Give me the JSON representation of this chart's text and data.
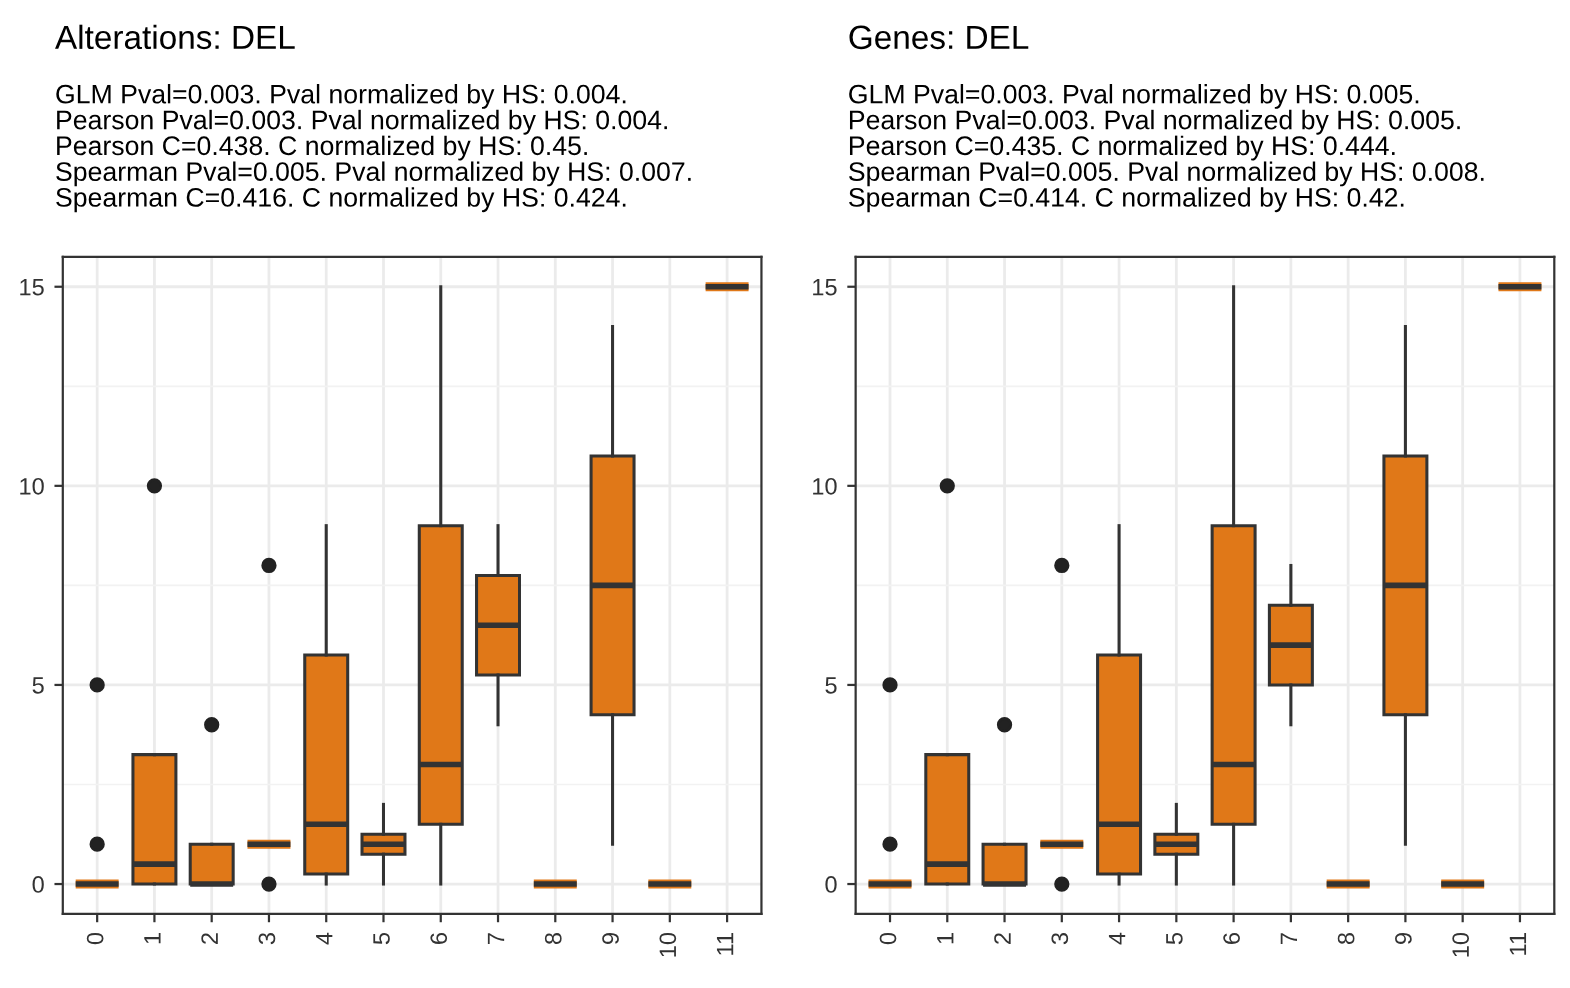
{
  "chart_data": [
    {
      "type": "box",
      "title": "Alterations: DEL",
      "subtitle": "GLM Pval=0.003. Pval normalized by HS: 0.004.\nPearson Pval=0.003. Pval normalized by HS: 0.004.\nPearson C=0.438. C normalized by HS: 0.45.\nSpearman Pval=0.005. Pval normalized by HS: 0.007.\nSpearman C=0.416. C normalized by HS: 0.424.",
      "categories": [
        "0",
        "1",
        "2",
        "3",
        "4",
        "5",
        "6",
        "7",
        "8",
        "9",
        "10",
        "11"
      ],
      "color": "#e07818",
      "ylim": [
        -0.75,
        15.75
      ],
      "yticks": [
        0,
        5,
        10,
        15
      ],
      "grid": true,
      "boxes": [
        {
          "low": 0,
          "q1": 0,
          "median": 0,
          "q3": 0,
          "high": 0,
          "outliers": [
            1,
            5
          ]
        },
        {
          "low": 0,
          "q1": 0,
          "median": 0.5,
          "q3": 3.25,
          "high": 3.25,
          "outliers": [
            10
          ]
        },
        {
          "low": 0,
          "q1": 0,
          "median": 0,
          "q3": 1,
          "high": 1,
          "outliers": [
            4
          ]
        },
        {
          "low": 1,
          "q1": 1,
          "median": 1,
          "q3": 1,
          "high": 1,
          "outliers": [
            0,
            8
          ]
        },
        {
          "low": 0,
          "q1": 0.25,
          "median": 1.5,
          "q3": 5.75,
          "high": 9
        },
        {
          "low": 0,
          "q1": 0.75,
          "median": 1,
          "q3": 1.25,
          "high": 2
        },
        {
          "low": 0,
          "q1": 1.5,
          "median": 3,
          "q3": 9,
          "high": 15
        },
        {
          "low": 4,
          "q1": 5.25,
          "median": 6.5,
          "q3": 7.75,
          "high": 9
        },
        {
          "low": 0,
          "q1": 0,
          "median": 0,
          "q3": 0,
          "high": 0
        },
        {
          "low": 1,
          "q1": 4.25,
          "median": 7.5,
          "q3": 10.75,
          "high": 14
        },
        {
          "low": 0,
          "q1": 0,
          "median": 0,
          "q3": 0,
          "high": 0
        },
        {
          "low": 15,
          "q1": 15,
          "median": 15,
          "q3": 15,
          "high": 15
        }
      ]
    },
    {
      "type": "box",
      "title": "Genes: DEL",
      "subtitle": "GLM Pval=0.003. Pval normalized by HS: 0.005.\nPearson Pval=0.003. Pval normalized by HS: 0.005.\nPearson C=0.435. C normalized by HS: 0.444.\nSpearman Pval=0.005. Pval normalized by HS: 0.008.\nSpearman C=0.414. C normalized by HS: 0.42.",
      "categories": [
        "0",
        "1",
        "2",
        "3",
        "4",
        "5",
        "6",
        "7",
        "8",
        "9",
        "10",
        "11"
      ],
      "color": "#e07818",
      "ylim": [
        -0.75,
        15.75
      ],
      "yticks": [
        0,
        5,
        10,
        15
      ],
      "grid": true,
      "boxes": [
        {
          "low": 0,
          "q1": 0,
          "median": 0,
          "q3": 0,
          "high": 0,
          "outliers": [
            1,
            5
          ]
        },
        {
          "low": 0,
          "q1": 0,
          "median": 0.5,
          "q3": 3.25,
          "high": 3.25,
          "outliers": [
            10
          ]
        },
        {
          "low": 0,
          "q1": 0,
          "median": 0,
          "q3": 1,
          "high": 1,
          "outliers": [
            4
          ]
        },
        {
          "low": 1,
          "q1": 1,
          "median": 1,
          "q3": 1,
          "high": 1,
          "outliers": [
            0,
            8
          ]
        },
        {
          "low": 0,
          "q1": 0.25,
          "median": 1.5,
          "q3": 5.75,
          "high": 9
        },
        {
          "low": 0,
          "q1": 0.75,
          "median": 1,
          "q3": 1.25,
          "high": 2
        },
        {
          "low": 0,
          "q1": 1.5,
          "median": 3,
          "q3": 9,
          "high": 15
        },
        {
          "low": 4,
          "q1": 5,
          "median": 6,
          "q3": 7,
          "high": 8
        },
        {
          "low": 0,
          "q1": 0,
          "median": 0,
          "q3": 0,
          "high": 0
        },
        {
          "low": 1,
          "q1": 4.25,
          "median": 7.5,
          "q3": 10.75,
          "high": 14
        },
        {
          "low": 0,
          "q1": 0,
          "median": 0,
          "q3": 0,
          "high": 0
        },
        {
          "low": 15,
          "q1": 15,
          "median": 15,
          "q3": 15,
          "high": 15
        }
      ]
    }
  ]
}
